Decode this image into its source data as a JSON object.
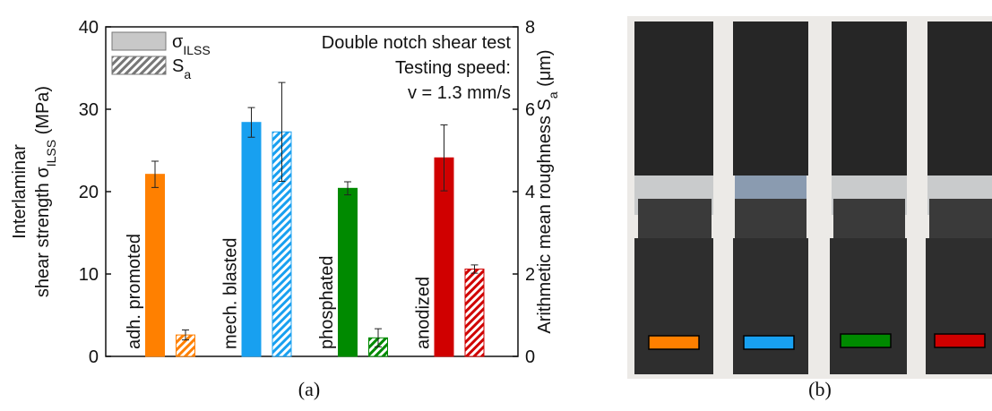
{
  "chart_data": {
    "type": "bar",
    "ylabel": {
      "line1": "Interlaminar",
      "line2": [
        "shear strength σ",
        "ILSS",
        " (MPa)"
      ]
    },
    "y2label": [
      "Arithmetic mean roughness S",
      "a",
      " (μm)"
    ],
    "annotations": [
      "Double notch shear test",
      "Testing speed:",
      "v = 1.3 mm/s"
    ],
    "categories": [
      "adh. promoted",
      "mech. blasted",
      "phosphated",
      "anodized"
    ],
    "colors": [
      "#ff8000",
      "#18a0f0",
      "#008a00",
      "#d00000"
    ],
    "series": [
      {
        "name": "σ",
        "name_subscript": "ILSS",
        "values": [
          22.1,
          28.4,
          20.4,
          24.1
        ],
        "errors": [
          1.6,
          1.8,
          0.8,
          4.0
        ],
        "hatch": false
      },
      {
        "name": "S",
        "name_subscript": "a",
        "axis": "y2",
        "values": [
          0.52,
          5.45,
          0.45,
          2.12
        ],
        "errors": [
          0.12,
          1.2,
          0.22,
          0.1
        ],
        "hatch": true
      }
    ],
    "ylim": [
      0,
      40
    ],
    "yticks": [
      0,
      10,
      20,
      30,
      40
    ],
    "y2lim": [
      0,
      8
    ],
    "y2ticks": [
      0,
      2,
      4,
      6,
      8
    ],
    "grid": false
  },
  "panel_labels": [
    "(a)",
    "(b)"
  ]
}
